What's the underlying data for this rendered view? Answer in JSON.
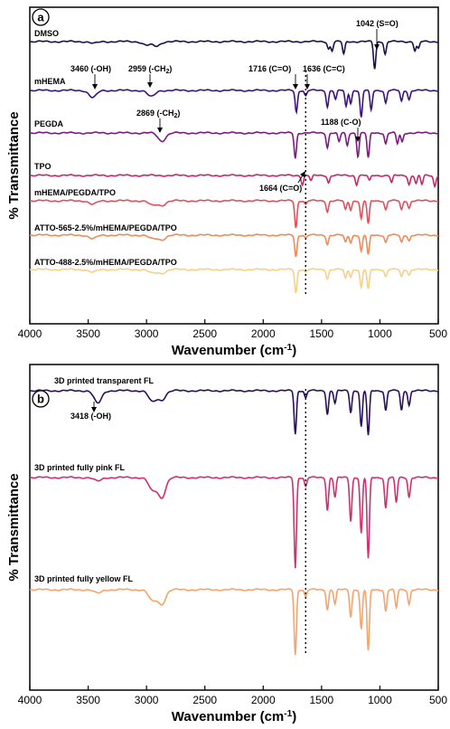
{
  "chart_data": [
    {
      "panel": "a",
      "type": "line",
      "xlabel": "Wavenumber (cm",
      "xlabel_sup": "-1",
      "xlabel_tail": ")",
      "ylabel": "% Transmittance",
      "xlim": [
        4000,
        500
      ],
      "x_reversed": true,
      "xticks": [
        "4000",
        "3500",
        "3000",
        "2500",
        "2000",
        "1500",
        "1000",
        "500"
      ],
      "series": [
        {
          "name": "DMSO",
          "color": "#1c0f4a",
          "dips": [
            [
              3450,
              2
            ],
            [
              3000,
              4
            ],
            [
              2915,
              5
            ],
            [
              1440,
              8
            ],
            [
              1410,
              10
            ],
            [
              1310,
              14
            ],
            [
              1045,
              30
            ],
            [
              955,
              14
            ],
            [
              700,
              10
            ],
            [
              670,
              8
            ]
          ]
        },
        {
          "name": "mHEMA",
          "color": "#3e127c",
          "dips": [
            [
              3460,
              8
            ],
            [
              2959,
              7
            ],
            [
              1716,
              24
            ],
            [
              1636,
              6
            ],
            [
              1450,
              18
            ],
            [
              1380,
              10
            ],
            [
              1290,
              18
            ],
            [
              1250,
              14
            ],
            [
              1160,
              30
            ],
            [
              1075,
              22
            ],
            [
              950,
              14
            ],
            [
              815,
              12
            ],
            [
              750,
              10
            ]
          ]
        },
        {
          "name": "PEGDA",
          "color": "#7b1a80",
          "dips": [
            [
              2869,
              9
            ],
            [
              1725,
              28
            ],
            [
              1450,
              16
            ],
            [
              1350,
              10
            ],
            [
              1280,
              14
            ],
            [
              1188,
              26
            ],
            [
              1100,
              28
            ],
            [
              950,
              12
            ],
            [
              850,
              12
            ],
            [
              810,
              10
            ]
          ]
        },
        {
          "name": "TPO",
          "color": "#c02a6a",
          "dips": [
            [
              1664,
              10
            ],
            [
              1590,
              6
            ],
            [
              1440,
              8
            ],
            [
              1200,
              10
            ],
            [
              1090,
              6
            ],
            [
              900,
              8
            ],
            [
              750,
              10
            ],
            [
              690,
              9
            ],
            [
              640,
              10
            ],
            [
              530,
              12
            ]
          ]
        },
        {
          "name": "mHEMA/PEGDA/TPO",
          "color": "#e54f5a",
          "dips": [
            [
              3460,
              4
            ],
            [
              2950,
              5
            ],
            [
              2870,
              5
            ],
            [
              1720,
              30
            ],
            [
              1636,
              4
            ],
            [
              1450,
              12
            ],
            [
              1295,
              10
            ],
            [
              1250,
              10
            ],
            [
              1160,
              20
            ],
            [
              1100,
              26
            ],
            [
              950,
              10
            ],
            [
              815,
              10
            ],
            [
              750,
              8
            ]
          ]
        },
        {
          "name": "ATTO-565-2.5%/mHEMA/PEGDA/TPO",
          "color": "#f08a58",
          "dips": [
            [
              3460,
              4
            ],
            [
              2950,
              4
            ],
            [
              2870,
              5
            ],
            [
              1720,
              24
            ],
            [
              1636,
              3
            ],
            [
              1450,
              10
            ],
            [
              1295,
              8
            ],
            [
              1250,
              8
            ],
            [
              1160,
              18
            ],
            [
              1100,
              22
            ],
            [
              950,
              8
            ],
            [
              815,
              8
            ],
            [
              750,
              6
            ]
          ]
        },
        {
          "name": "ATTO-488-2.5%/mHEMA/PEGDA/TPO",
          "color": "#f7d08a",
          "dips": [
            [
              3460,
              3
            ],
            [
              2950,
              4
            ],
            [
              2870,
              4
            ],
            [
              1720,
              26
            ],
            [
              1636,
              3
            ],
            [
              1450,
              10
            ],
            [
              1295,
              10
            ],
            [
              1250,
              8
            ],
            [
              1160,
              20
            ],
            [
              1100,
              22
            ],
            [
              950,
              8
            ],
            [
              815,
              8
            ],
            [
              750,
              6
            ]
          ]
        }
      ],
      "annotations": [
        {
          "text": "1042 (S=O)",
          "x": 1042
        },
        {
          "text": "3460 (-OH)",
          "x": 3460
        },
        {
          "text": "2959 (-CH",
          "sub": "2",
          "tail": ")",
          "x": 2959
        },
        {
          "text": "1716 (C=O)",
          "x": 1716
        },
        {
          "text": "1636 (C=C)",
          "x": 1636
        },
        {
          "text": "2869 (-CH",
          "sub": "2",
          "tail": ")",
          "x": 2869
        },
        {
          "text": "1188 (C-O)",
          "x": 1188
        },
        {
          "text": "1664 (C=O)",
          "x": 1664
        }
      ],
      "reference_line_x": 1636
    },
    {
      "panel": "b",
      "type": "line",
      "xlabel": "Wavenumber (cm",
      "xlabel_sup": "-1",
      "xlabel_tail": ")",
      "ylabel": "% Transmittance",
      "xlim": [
        4000,
        500
      ],
      "x_reversed": true,
      "xticks": [
        "4000",
        "3500",
        "3000",
        "2500",
        "2000",
        "1500",
        "1000",
        "500"
      ],
      "series": [
        {
          "name": "3D printed transparent FL",
          "color": "#2a0f5c",
          "dips": [
            [
              3418,
              14
            ],
            [
              2950,
              12
            ],
            [
              2870,
              10
            ],
            [
              1725,
              48
            ],
            [
              1636,
              8
            ],
            [
              1450,
              26
            ],
            [
              1385,
              14
            ],
            [
              1250,
              24
            ],
            [
              1160,
              40
            ],
            [
              1100,
              50
            ],
            [
              950,
              22
            ],
            [
              815,
              22
            ],
            [
              750,
              16
            ]
          ]
        },
        {
          "name": "3D printed fully pink FL",
          "color": "#d0306e",
          "dips": [
            [
              3418,
              4
            ],
            [
              2950,
              14
            ],
            [
              2870,
              22
            ],
            [
              1725,
              100
            ],
            [
              1636,
              10
            ],
            [
              1450,
              36
            ],
            [
              1385,
              22
            ],
            [
              1250,
              48
            ],
            [
              1160,
              62
            ],
            [
              1100,
              90
            ],
            [
              950,
              34
            ],
            [
              860,
              28
            ],
            [
              750,
              22
            ]
          ]
        },
        {
          "name": "3D printed fully yellow FL",
          "color": "#f6a36c",
          "dips": [
            [
              3418,
              4
            ],
            [
              2950,
              12
            ],
            [
              2870,
              16
            ],
            [
              1725,
              72
            ],
            [
              1636,
              8
            ],
            [
              1450,
              22
            ],
            [
              1385,
              16
            ],
            [
              1250,
              30
            ],
            [
              1160,
              44
            ],
            [
              1100,
              68
            ],
            [
              950,
              24
            ],
            [
              860,
              20
            ],
            [
              750,
              16
            ]
          ]
        }
      ],
      "annotations": [
        {
          "text": "3418 (-OH)",
          "x": 3418
        }
      ],
      "reference_line_x": 1636
    }
  ]
}
